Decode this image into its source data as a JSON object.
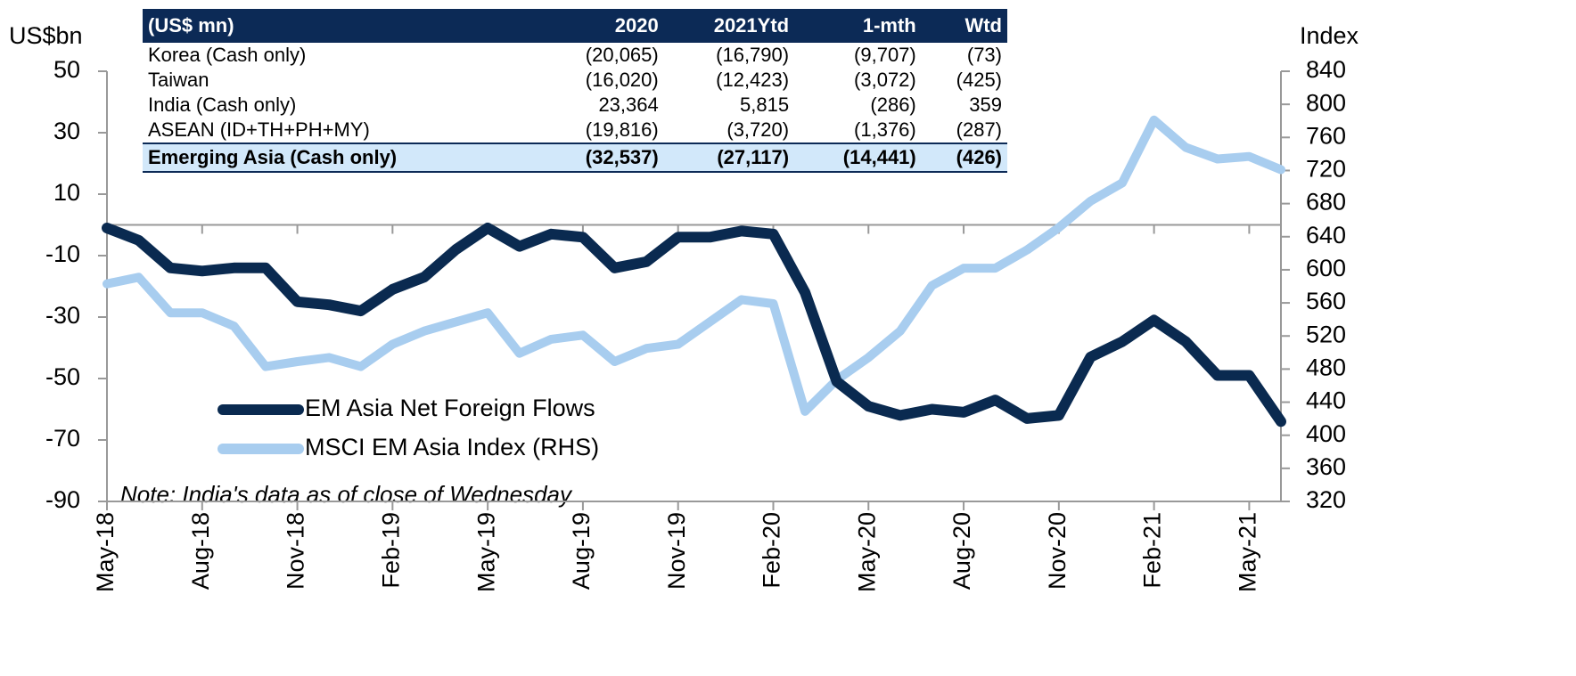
{
  "chart_data": {
    "type": "line",
    "y_label": "US$bn",
    "y2_label": "Index",
    "note": "Note: India's data as of close of Wednesday",
    "categories": [
      "May-18",
      null,
      null,
      "Aug-18",
      null,
      null,
      "Nov-18",
      null,
      null,
      "Feb-19",
      null,
      null,
      "May-19",
      null,
      null,
      "Aug-19",
      null,
      null,
      "Nov-19",
      null,
      null,
      "Feb-20",
      null,
      null,
      "May-20",
      null,
      null,
      "Aug-20",
      null,
      null,
      "Nov-20",
      null,
      null,
      "Feb-21",
      null,
      null,
      "May-21",
      null
    ],
    "series": [
      {
        "name": "EM Asia Net Foreign Flows",
        "color": "#0a2a50",
        "values": [
          -1,
          -5,
          -14,
          -15,
          -14,
          -14,
          -25,
          -26,
          -28,
          -21,
          -17,
          -8,
          -1,
          -7,
          -3,
          -4,
          -14,
          -12,
          -4,
          -4,
          -2,
          -3,
          -22,
          -51,
          -59,
          -62,
          -60,
          -61,
          -57,
          -63,
          -62,
          -43,
          -38,
          -31,
          -38,
          -49,
          -49,
          -64
        ]
      },
      {
        "name": "MSCI EM Asia Index (RHS)",
        "color": "#a8cdef",
        "axis": "y2",
        "values": [
          583,
          591,
          548,
          548,
          532,
          483,
          489,
          494,
          483,
          510,
          526,
          537,
          548,
          499,
          516,
          521,
          489,
          505,
          510,
          537,
          564,
          559,
          429,
          467,
          494,
          526,
          581,
          602,
          602,
          624,
          651,
          683,
          705,
          781,
          748,
          734,
          737,
          721
        ]
      }
    ],
    "ylim": [
      -90,
      50
    ],
    "yticks": [
      -90,
      -70,
      -50,
      -30,
      -10,
      10,
      30,
      50
    ],
    "y2lim": [
      320,
      840
    ],
    "y2ticks": [
      320,
      360,
      400,
      440,
      480,
      520,
      560,
      600,
      640,
      680,
      720,
      760,
      800,
      840
    ],
    "legend": "lower left"
  },
  "table": {
    "header": [
      "(US$ mn)",
      "2020",
      "2021Ytd",
      "1-mth",
      "Wtd"
    ],
    "rows": [
      [
        "Korea (Cash only)",
        "(20,065)",
        "(16,790)",
        "(9,707)",
        "(73)"
      ],
      [
        "Taiwan",
        "(16,020)",
        "(12,423)",
        "(3,072)",
        "(425)"
      ],
      [
        "India (Cash only)",
        "23,364",
        "5,815",
        "(286)",
        "359"
      ],
      [
        "ASEAN (ID+TH+PH+MY)",
        "(19,816)",
        "(3,720)",
        "(1,376)",
        "(287)"
      ],
      [
        "Emerging Asia (Cash only)",
        "(32,537)",
        "(27,117)",
        "(14,441)",
        "(426)"
      ]
    ]
  }
}
